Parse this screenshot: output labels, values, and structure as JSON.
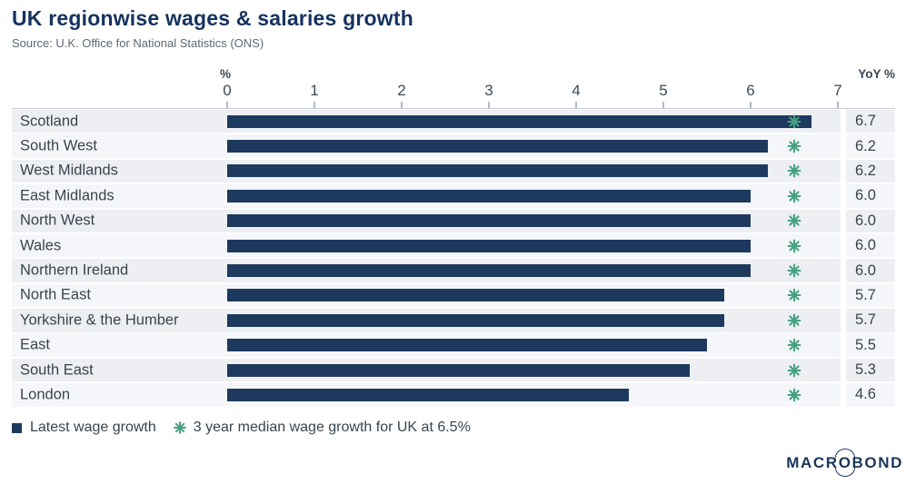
{
  "header": {
    "title": "UK regionwise wages & salaries growth",
    "source": "Source: U.K. Office for National Statistics (ONS)"
  },
  "axis": {
    "unit_label": "%",
    "right_header": "YoY %",
    "ticks": [
      "0",
      "1",
      "2",
      "3",
      "4",
      "5",
      "6",
      "7"
    ],
    "min": 0,
    "max": 7
  },
  "chart_data": {
    "type": "bar",
    "orientation": "horizontal",
    "title": "UK regionwise wages & salaries growth",
    "xlabel": "%",
    "value_column_header": "YoY %",
    "xlim": [
      0,
      7
    ],
    "grid": true,
    "categories": [
      "Scotland",
      "South West",
      "West Midlands",
      "East Midlands",
      "North West",
      "Wales",
      "Northern Ireland",
      "North East",
      "Yorkshire & the Humber",
      "East",
      "South East",
      "London"
    ],
    "values": [
      6.7,
      6.2,
      6.2,
      6.0,
      6.0,
      6.0,
      6.0,
      5.7,
      5.7,
      5.5,
      5.3,
      4.6
    ],
    "value_labels": [
      "6.7",
      "6.2",
      "6.2",
      "6.0",
      "6.0",
      "6.0",
      "6.0",
      "5.7",
      "5.7",
      "5.5",
      "5.3",
      "4.6"
    ],
    "median_marker_value": 6.5,
    "series_name": "Latest wage growth",
    "marker_series_name": "3 year median wage growth for UK at 6.5%"
  },
  "legend": {
    "items": [
      {
        "marker": "square",
        "label": "Latest wage growth"
      },
      {
        "marker": "asterisk",
        "label": "3 year median wage growth for UK at 6.5%"
      }
    ]
  },
  "branding": {
    "logo_prefix": "MACR",
    "logo_o": "O",
    "logo_suffix": "BOND"
  },
  "colors": {
    "bar_navy": "#1d3a5e",
    "marker_green": "#47a181",
    "title_navy": "#16325f",
    "band_odd": "#edeff2",
    "band_even": "#f5f6f9"
  }
}
